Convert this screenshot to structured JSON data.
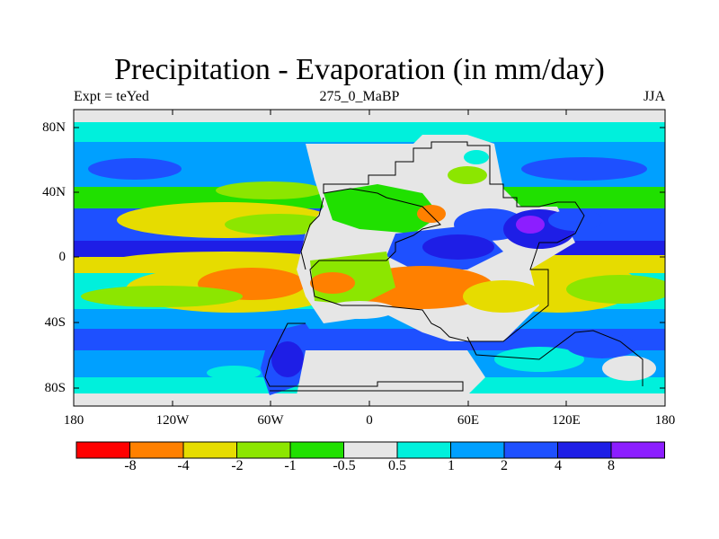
{
  "title": "Precipitation - Evaporation (in mm/day)",
  "subtitle_left": "Expt = teYed",
  "subtitle_center": "275_0_MaBP",
  "subtitle_right": "JJA",
  "map": {
    "lat_ticks": [
      "80N",
      "40N",
      "0",
      "40S",
      "80S"
    ],
    "lon_ticks": [
      "180",
      "120W",
      "60W",
      "0",
      "60E",
      "120E",
      "180"
    ]
  },
  "colorbar": {
    "labels": [
      "-8",
      "-4",
      "-2",
      "-1",
      "-0.5",
      "0.5",
      "1",
      "2",
      "4",
      "8"
    ],
    "colors": [
      "#ff0000",
      "#ff8000",
      "#e6dc00",
      "#8ce600",
      "#20e000",
      "#e6e6e6",
      "#00f0dc",
      "#00a0ff",
      "#1e50ff",
      "#1e1ee6",
      "#8c1eff"
    ]
  }
}
